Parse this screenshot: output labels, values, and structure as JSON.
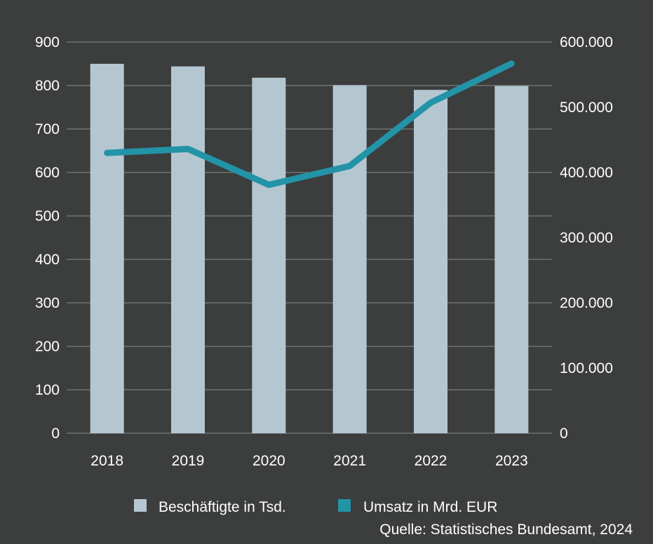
{
  "chart_data": {
    "type": "bar",
    "categories": [
      "2018",
      "2019",
      "2020",
      "2021",
      "2022",
      "2023"
    ],
    "series": [
      {
        "name": "Beschäftigte in Tsd.",
        "type": "bar",
        "axis": "left",
        "color": "#b4c7d1",
        "values": [
          850,
          844,
          818,
          801,
          790,
          799
        ]
      },
      {
        "name": "Umsatz in Mrd. EUR",
        "type": "line",
        "axis": "right",
        "color": "#2393a7",
        "values": [
          430000,
          436000,
          381000,
          410000,
          507000,
          567000
        ]
      }
    ],
    "y_left": {
      "ylim": [
        0,
        900
      ],
      "ticks": [
        0,
        100,
        200,
        300,
        400,
        500,
        600,
        700,
        800,
        900
      ],
      "tick_labels": [
        "0",
        "100",
        "200",
        "300",
        "400",
        "500",
        "600",
        "700",
        "800",
        "900"
      ]
    },
    "y_right": {
      "ylim": [
        0,
        600000
      ],
      "ticks": [
        0,
        100000,
        200000,
        300000,
        400000,
        500000,
        600000
      ],
      "tick_labels": [
        "0",
        "100.000",
        "200.000",
        "300.000",
        "400.000",
        "500.000",
        "600.000"
      ]
    },
    "grid": true,
    "legend": {
      "position": "bottom",
      "items": [
        "Beschäftigte in Tsd.",
        "Umsatz in Mrd. EUR"
      ]
    },
    "source": "Quelle: Statistisches Bundesamt, 2024",
    "background": "#3c3d3d",
    "gridline_color": "#8a8c8c"
  }
}
